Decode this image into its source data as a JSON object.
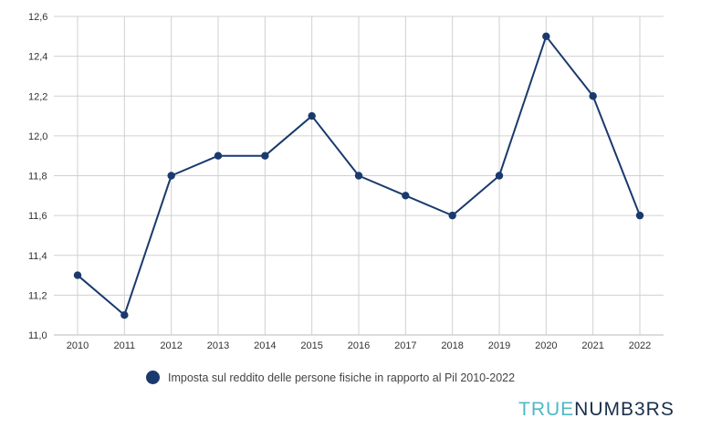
{
  "chart_data": {
    "type": "line",
    "title": "",
    "xlabel": "",
    "ylabel": "",
    "x": [
      "2010",
      "2011",
      "2012",
      "2013",
      "2014",
      "2015",
      "2016",
      "2017",
      "2018",
      "2019",
      "2020",
      "2021",
      "2022"
    ],
    "series": [
      {
        "name": "Imposta sul reddito delle persone fisiche in rapporto al Pil 2010-2022",
        "values": [
          11.3,
          11.1,
          11.8,
          11.9,
          11.9,
          12.1,
          11.8,
          11.7,
          11.6,
          11.8,
          12.5,
          12.2,
          11.6
        ]
      }
    ],
    "ylim": [
      11.0,
      12.6
    ],
    "yticks": [
      "11,0",
      "11,2",
      "11,4",
      "11,6",
      "11,8",
      "12,0",
      "12,2",
      "12,4",
      "12,6"
    ],
    "grid": true,
    "legend_position": "bottom"
  },
  "legend": {
    "label": "Imposta sul reddito delle persone fisiche in rapporto al Pil 2010-2022"
  },
  "brand": {
    "part1": "TRUE",
    "part2": "NUMB3RS"
  },
  "colors": {
    "series": "#1a3a6e",
    "grid": "#d0d0d0",
    "brand_accent": "#4db8c8",
    "brand_dark": "#1a2f4d"
  }
}
